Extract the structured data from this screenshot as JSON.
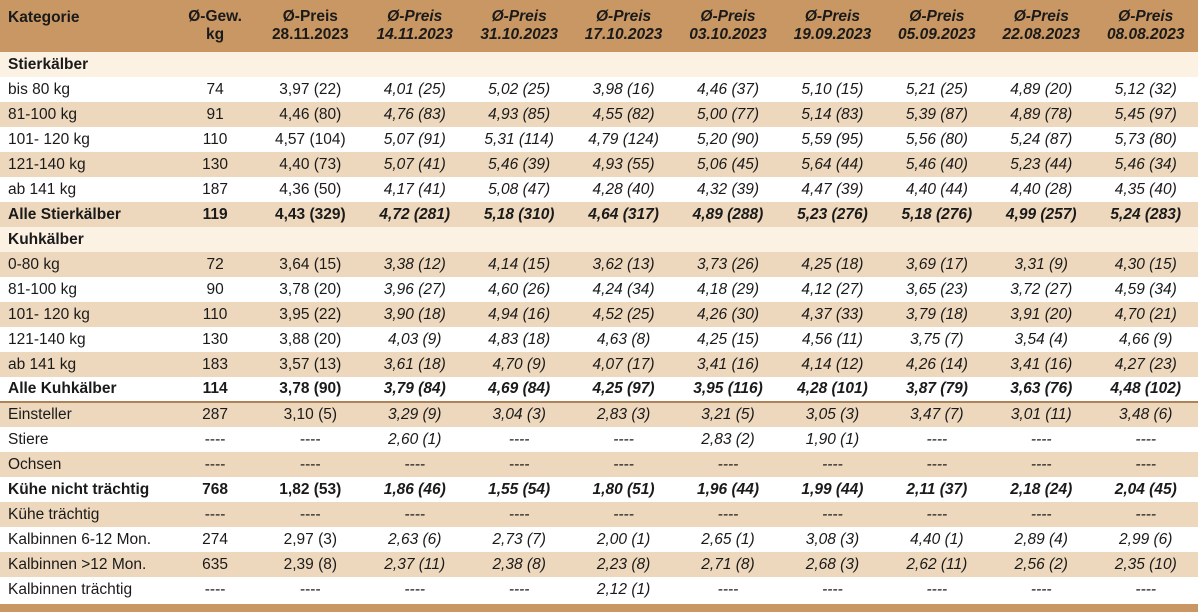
{
  "header": {
    "kategorie": "Kategorie",
    "gewicht_line1": "Ø-Gew.",
    "gewicht_line2": "kg",
    "preis_label": "Ø-Preis",
    "dates": [
      "28.11.2023",
      "14.11.2023",
      "31.10.2023",
      "17.10.2023",
      "03.10.2023",
      "19.09.2023",
      "05.09.2023",
      "22.08.2023",
      "08.08.2023"
    ]
  },
  "sections": {
    "stierkaelber": "Stierkälber",
    "kuhkaelber": "Kuhkälber"
  },
  "rows": [
    {
      "label": "bis 80 kg",
      "gew": "74",
      "prices": [
        "3,97 (22)",
        "4,01 (25)",
        "5,02 (25)",
        "3,98 (16)",
        "4,46 (37)",
        "5,10 (15)",
        "5,21 (25)",
        "4,89 (20)",
        "5,12 (32)"
      ]
    },
    {
      "label": "81-100 kg",
      "gew": "91",
      "prices": [
        "4,46 (80)",
        "4,76 (83)",
        "4,93 (85)",
        "4,55 (82)",
        "5,00 (77)",
        "5,14 (83)",
        "5,39 (87)",
        "4,89 (78)",
        "5,45 (97)"
      ]
    },
    {
      "label": "101- 120 kg",
      "gew": "110",
      "prices": [
        "4,57 (104)",
        "5,07 (91)",
        "5,31 (114)",
        "4,79 (124)",
        "5,20 (90)",
        "5,59 (95)",
        "5,56 (80)",
        "5,24 (87)",
        "5,73 (80)"
      ]
    },
    {
      "label": "121-140 kg",
      "gew": "130",
      "prices": [
        "4,40 (73)",
        "5,07 (41)",
        "5,46 (39)",
        "4,93 (55)",
        "5,06 (45)",
        "5,64 (44)",
        "5,46 (40)",
        "5,23 (44)",
        "5,46 (34)"
      ]
    },
    {
      "label": "ab 141 kg",
      "gew": "187",
      "prices": [
        "4,36 (50)",
        "4,17 (41)",
        "5,08 (47)",
        "4,28 (40)",
        "4,32 (39)",
        "4,47 (39)",
        "4,40 (44)",
        "4,40 (28)",
        "4,35 (40)"
      ]
    },
    {
      "label": "Alle Stierkälber",
      "gew": "119",
      "prices": [
        "4,43 (329)",
        "4,72 (281)",
        "5,18 (310)",
        "4,64 (317)",
        "4,89 (288)",
        "5,23 (276)",
        "5,18 (276)",
        "4,99 (257)",
        "5,24 (283)"
      ]
    },
    {
      "label": "0-80 kg",
      "gew": "72",
      "prices": [
        "3,64 (15)",
        "3,38 (12)",
        "4,14 (15)",
        "3,62 (13)",
        "3,73 (26)",
        "4,25 (18)",
        "3,69 (17)",
        "3,31 (9)",
        "4,30 (15)"
      ]
    },
    {
      "label": "81-100 kg",
      "gew": "90",
      "prices": [
        "3,78 (20)",
        "3,96 (27)",
        "4,60 (26)",
        "4,24 (34)",
        "4,18 (29)",
        "4,12 (27)",
        "3,65 (23)",
        "3,72 (27)",
        "4,59 (34)"
      ]
    },
    {
      "label": "101- 120 kg",
      "gew": "110",
      "prices": [
        "3,95 (22)",
        "3,90 (18)",
        "4,94 (16)",
        "4,52 (25)",
        "4,26 (30)",
        "4,37 (33)",
        "3,79 (18)",
        "3,91 (20)",
        "4,70 (21)"
      ]
    },
    {
      "label": "121-140 kg",
      "gew": "130",
      "prices": [
        "3,88 (20)",
        "4,03 (9)",
        "4,83 (18)",
        "4,63 (8)",
        "4,25 (15)",
        "4,56 (11)",
        "3,75 (7)",
        "3,54 (4)",
        "4,66 (9)"
      ]
    },
    {
      "label": "ab 141 kg",
      "gew": "183",
      "prices": [
        "3,57 (13)",
        "3,61 (18)",
        "4,70 (9)",
        "4,07 (17)",
        "3,41 (16)",
        "4,14 (12)",
        "4,26 (14)",
        "3,41 (16)",
        "4,27 (23)"
      ]
    },
    {
      "label": "Alle Kuhkälber",
      "gew": "114",
      "prices": [
        "3,78 (90)",
        "3,79 (84)",
        "4,69 (84)",
        "4,25 (97)",
        "3,95 (116)",
        "4,28 (101)",
        "3,87 (79)",
        "3,63 (76)",
        "4,48 (102)"
      ]
    },
    {
      "label": "Einsteller",
      "gew": "287",
      "prices": [
        "3,10 (5)",
        "3,29 (9)",
        "3,04 (3)",
        "2,83 (3)",
        "3,21 (5)",
        "3,05 (3)",
        "3,47 (7)",
        "3,01 (11)",
        "3,48 (6)"
      ]
    },
    {
      "label": "Stiere",
      "gew": "----",
      "prices": [
        "----",
        "2,60 (1)",
        "----",
        "----",
        "2,83 (2)",
        "1,90 (1)",
        "----",
        "----",
        "----"
      ]
    },
    {
      "label": "Ochsen",
      "gew": "----",
      "prices": [
        "----",
        "----",
        "----",
        "----",
        "----",
        "----",
        "----",
        "----",
        "----"
      ]
    },
    {
      "label": "Kühe nicht trächtig",
      "gew": "768",
      "prices": [
        "1,82 (53)",
        "1,86 (46)",
        "1,55 (54)",
        "1,80 (51)",
        "1,96 (44)",
        "1,99 (44)",
        "2,11 (37)",
        "2,18 (24)",
        "2,04 (45)"
      ]
    },
    {
      "label": "Kühe trächtig",
      "gew": "----",
      "prices": [
        "----",
        "----",
        "----",
        "----",
        "----",
        "----",
        "----",
        "----",
        "----"
      ]
    },
    {
      "label": "Kalbinnen 6-12 Mon.",
      "gew": "274",
      "prices": [
        "2,97 (3)",
        "2,63 (6)",
        "2,73 (7)",
        "2,00 (1)",
        "2,65 (1)",
        "3,08 (3)",
        "4,40 (1)",
        "2,89 (4)",
        "2,99 (6)"
      ]
    },
    {
      "label": "Kalbinnen >12 Mon.",
      "gew": "635",
      "prices": [
        "2,39 (8)",
        "2,37 (11)",
        "2,38 (8)",
        "2,23 (8)",
        "2,71 (8)",
        "2,68 (3)",
        "2,62 (11)",
        "2,56 (2)",
        "2,35 (10)"
      ]
    },
    {
      "label": "Kalbinnen trächtig",
      "gew": "----",
      "prices": [
        "----",
        "----",
        "----",
        "2,12 (1)",
        "----",
        "----",
        "----",
        "----",
        "----"
      ]
    }
  ],
  "colors": {
    "header": "#c89763",
    "band": "#edd8bd",
    "section": "#fbf2e4"
  }
}
